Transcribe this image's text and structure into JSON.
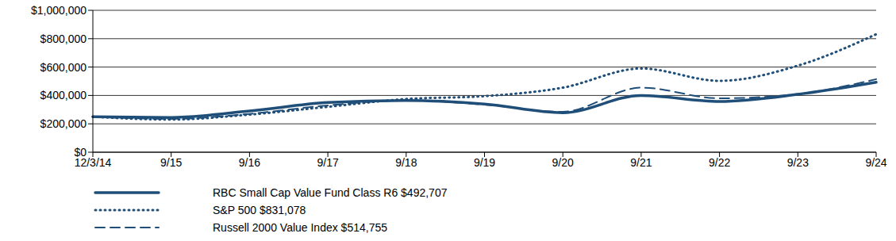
{
  "chart_data": {
    "type": "line",
    "categories": [
      "12/3/14",
      "9/15",
      "9/16",
      "9/17",
      "9/18",
      "9/19",
      "9/20",
      "9/21",
      "9/22",
      "9/23",
      "9/24"
    ],
    "series": [
      {
        "name": "RBC Small Cap Value Fund Class R6 $492,707",
        "color": "#1f4e79",
        "line_style": "solid",
        "values": [
          250000,
          245000,
          290000,
          350000,
          365000,
          340000,
          278000,
          400000,
          358000,
          408000,
          492707
        ]
      },
      {
        "name": "S&P 500 $831,078",
        "color": "#1f4e79",
        "line_style": "dotted",
        "values": [
          250000,
          230000,
          265000,
          320000,
          375000,
          395000,
          455000,
          590000,
          503000,
          610000,
          831078
        ]
      },
      {
        "name": "Russell 2000 Value Index $514,755",
        "color": "#1f4e79",
        "line_style": "dashed",
        "values": [
          250000,
          235000,
          270000,
          330000,
          365000,
          335000,
          285000,
          455000,
          380000,
          410000,
          514755
        ]
      }
    ],
    "ylim": [
      0,
      1000000
    ],
    "yticks": [
      {
        "value": 0,
        "label": "$0"
      },
      {
        "value": 200000,
        "label": "$200,000"
      },
      {
        "value": 400000,
        "label": "$400,000"
      },
      {
        "value": 600000,
        "label": "$600,000"
      },
      {
        "value": 800000,
        "label": "$800,000"
      },
      {
        "value": 1000000,
        "label": "$1,000,000"
      }
    ],
    "grid": true,
    "legend": "bottom-left"
  }
}
